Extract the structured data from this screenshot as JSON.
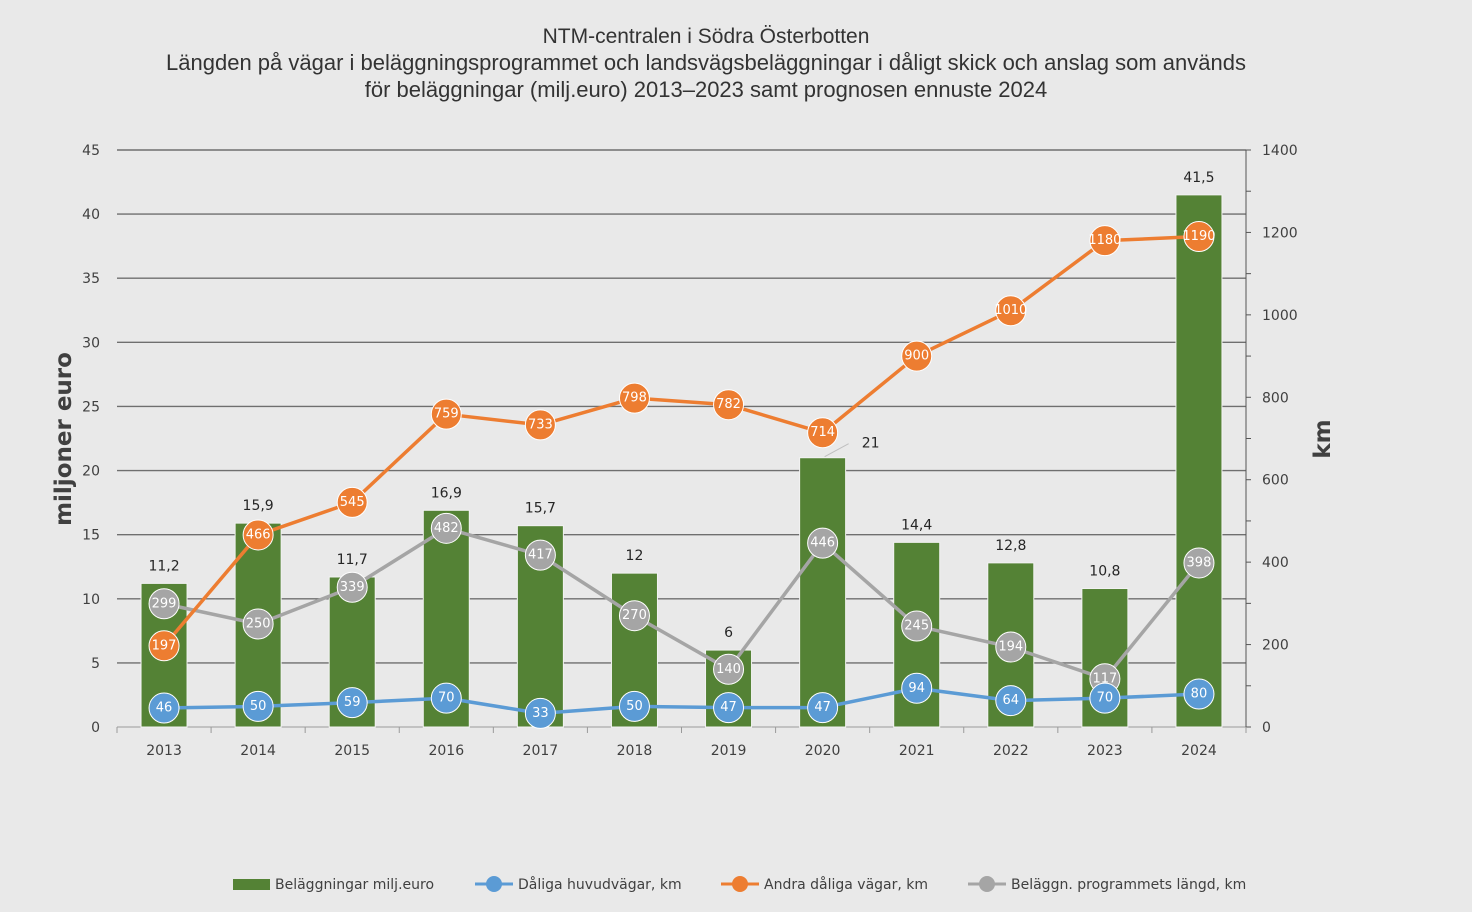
{
  "chart_data": {
    "type": "bar",
    "title_lines": [
      "NTM-centralen i Södra Österbotten",
      "Längden på vägar i beläggningsprogrammet och landsvägsbeläggningar i dåligt skick och anslag som används",
      "för beläggningar (milj.euro) 2013–2023 samt prognosen ennuste 2024"
    ],
    "categories": [
      "2013",
      "2014",
      "2015",
      "2016",
      "2017",
      "2018",
      "2019",
      "2020",
      "2021",
      "2022",
      "2023",
      "2024"
    ],
    "ylabel": "miljoner euro",
    "y2label": "km",
    "ylim": [
      0,
      45
    ],
    "y2lim": [
      0,
      1400
    ],
    "y_ticks": [
      "0",
      "5",
      "10",
      "15",
      "20",
      "25",
      "30",
      "35",
      "40",
      "45"
    ],
    "y2_ticks": [
      "0",
      "200",
      "400",
      "600",
      "800",
      "1000",
      "1200",
      "1400"
    ],
    "grid": true,
    "legend_position": "bottom",
    "series": [
      {
        "name": "Beläggningar milj.euro",
        "type": "bar",
        "axis": "left",
        "color": "#548235",
        "values": [
          11.2,
          15.9,
          11.7,
          16.9,
          15.7,
          12,
          6,
          21,
          14.4,
          12.8,
          10.8,
          41.5
        ],
        "labels": [
          "11,2",
          "15,9",
          "11,7",
          "16,9",
          "15,7",
          "12",
          "6",
          "21",
          "14,4",
          "12,8",
          "10,8",
          "41,5"
        ]
      },
      {
        "name": "Dåliga huvudvägar, km",
        "type": "line",
        "axis": "right",
        "color": "#5b9bd5",
        "values": [
          46,
          50,
          59,
          70,
          33,
          50,
          47,
          47,
          94,
          64,
          70,
          80
        ],
        "labels": [
          "46",
          "50",
          "59",
          "70",
          "33",
          "50",
          "47",
          "47",
          "94",
          "64",
          "70",
          "80"
        ]
      },
      {
        "name": "Andra dåliga vägar, km",
        "type": "line",
        "axis": "right",
        "color": "#ed7d31",
        "values": [
          197,
          466,
          545,
          759,
          733,
          798,
          782,
          714,
          900,
          1010,
          1180,
          1190
        ],
        "labels": [
          "197",
          "466",
          "545",
          "759",
          "733",
          "798",
          "782",
          "714",
          "900",
          "1010",
          "1180",
          "1190"
        ]
      },
      {
        "name": "Beläggn. programmets längd, km",
        "type": "line",
        "axis": "right",
        "color": "#a5a5a5",
        "values": [
          299,
          250,
          339,
          482,
          417,
          270,
          140,
          446,
          245,
          194,
          117,
          398
        ],
        "labels": [
          "299",
          "250",
          "339",
          "482",
          "417",
          "270",
          "140",
          "446",
          "245",
          "194",
          "117",
          "398"
        ]
      }
    ]
  }
}
